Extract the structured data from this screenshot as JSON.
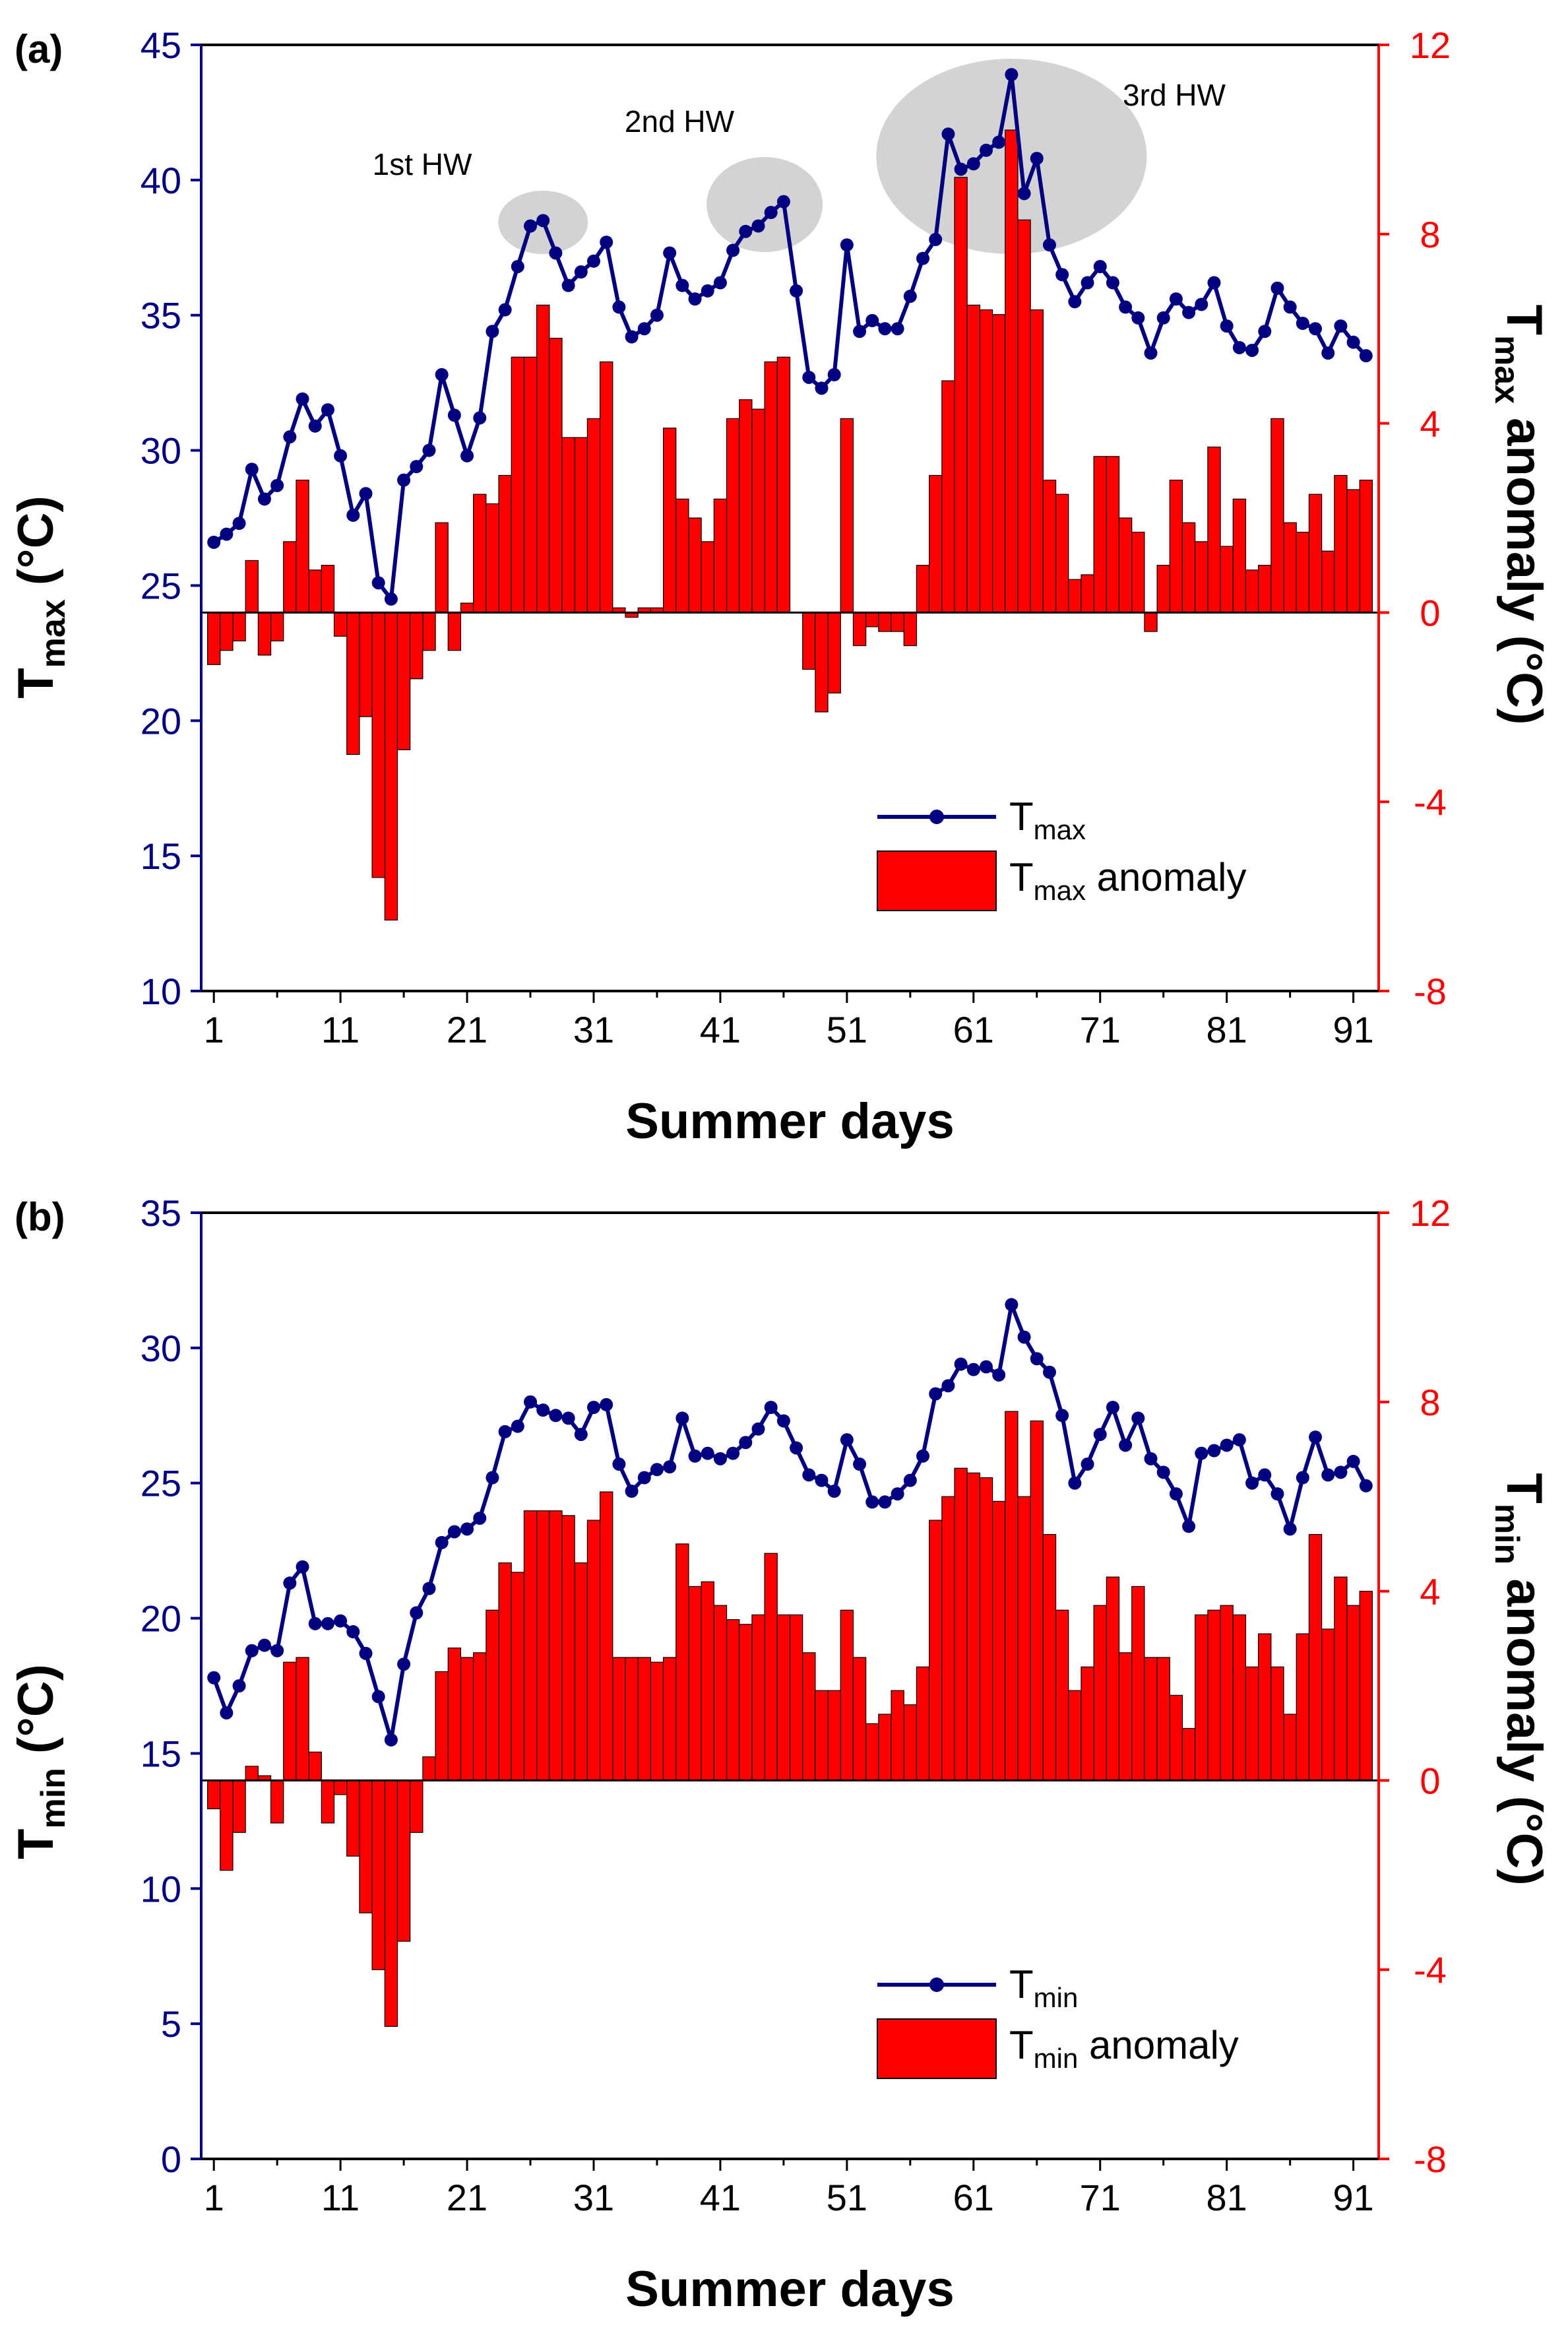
{
  "chart_data": [
    {
      "type": "bar+line",
      "panel_label": "(a)",
      "xlabel": "Summer days",
      "x_ticks": [
        1,
        11,
        21,
        31,
        41,
        51,
        61,
        71,
        81,
        91
      ],
      "xlim": [
        0,
        93
      ],
      "left_axis": {
        "label_main": "T",
        "label_sub": "max",
        "label_unit": " (°C)",
        "ylim": [
          10,
          45
        ],
        "ticks": [
          10,
          15,
          20,
          25,
          30,
          35,
          40,
          45
        ],
        "color": "#000080"
      },
      "right_axis": {
        "label_main": "T",
        "label_sub": "max",
        "label_rest": " anomaly (°C)",
        "ylim": [
          -8,
          12
        ],
        "ticks": [
          -8,
          -4,
          0,
          4,
          8,
          12
        ],
        "color": "#ff0000"
      },
      "line_series": {
        "name_main": "T",
        "name_sub": "max",
        "color": "#000080",
        "values": [
          26.6,
          26.9,
          27.3,
          29.3,
          28.2,
          28.7,
          30.5,
          31.9,
          30.9,
          31.5,
          29.8,
          27.6,
          28.4,
          25.1,
          24.5,
          28.9,
          29.4,
          30.0,
          32.8,
          31.3,
          29.8,
          31.2,
          34.4,
          35.2,
          36.8,
          38.3,
          38.5,
          37.3,
          36.1,
          36.6,
          37.0,
          37.7,
          35.3,
          34.2,
          34.5,
          35.0,
          37.3,
          36.1,
          35.6,
          35.9,
          36.2,
          37.4,
          38.1,
          38.3,
          38.8,
          39.2,
          35.9,
          32.7,
          32.3,
          32.8,
          37.6,
          34.4,
          34.8,
          34.5,
          34.5,
          35.7,
          37.1,
          37.8,
          41.7,
          40.4,
          40.6,
          41.1,
          41.4,
          43.9,
          39.5,
          40.8,
          37.6,
          36.5,
          35.5,
          36.2,
          36.8,
          36.2,
          35.3,
          34.9,
          33.6,
          34.9,
          35.6,
          35.1,
          35.4,
          36.2,
          34.6,
          33.8,
          33.7,
          34.4,
          36.0,
          35.3,
          34.7,
          34.5,
          33.6,
          34.6,
          34.0,
          33.5
        ]
      },
      "bar_series": {
        "name_main": "T",
        "name_sub": "max",
        "name_rest": " anomaly",
        "color": "#ff0000",
        "values": [
          -1.1,
          -0.8,
          -0.6,
          1.1,
          -0.9,
          -0.6,
          1.5,
          2.8,
          0.9,
          1.0,
          -0.5,
          -3.0,
          -2.2,
          -5.6,
          -6.5,
          -2.9,
          -1.4,
          -0.8,
          1.9,
          -0.8,
          0.2,
          2.5,
          2.3,
          2.9,
          5.4,
          5.4,
          6.5,
          5.8,
          3.7,
          3.7,
          4.1,
          5.3,
          0.1,
          -0.1,
          0.1,
          0.1,
          3.9,
          2.4,
          2.0,
          1.5,
          2.4,
          4.1,
          4.5,
          4.3,
          5.3,
          5.4,
          0.0,
          -1.2,
          -2.1,
          -1.7,
          4.1,
          -0.7,
          -0.3,
          -0.4,
          -0.4,
          -0.7,
          1.0,
          2.9,
          4.9,
          9.2,
          6.5,
          6.4,
          6.3,
          10.2,
          8.3,
          6.4,
          2.8,
          2.5,
          0.7,
          0.8,
          3.3,
          3.3,
          2.0,
          1.7,
          -0.4,
          1.0,
          2.8,
          1.9,
          1.5,
          3.5,
          1.4,
          2.4,
          0.9,
          1.0,
          4.1,
          1.9,
          1.7,
          2.5,
          1.3,
          2.9,
          2.6,
          2.8
        ]
      },
      "annotations": [
        {
          "label": "1st HW",
          "day_range": [
            25,
            29
          ]
        },
        {
          "label": "2nd HW",
          "day_range": [
            42,
            47
          ]
        },
        {
          "label": "3rd HW",
          "day_range": [
            58,
            70
          ]
        }
      ],
      "legend_position": "lower-right"
    },
    {
      "type": "bar+line",
      "panel_label": "(b)",
      "xlabel": "Summer days",
      "x_ticks": [
        1,
        11,
        21,
        31,
        41,
        51,
        61,
        71,
        81,
        91
      ],
      "xlim": [
        0,
        93
      ],
      "left_axis": {
        "label_main": "T",
        "label_sub": "min",
        "label_unit": " (°C)",
        "ylim": [
          0,
          35
        ],
        "ticks": [
          0,
          5,
          10,
          15,
          20,
          25,
          30,
          35
        ],
        "color": "#000080"
      },
      "right_axis": {
        "label_main": "T",
        "label_sub": "min",
        "label_rest": " anomaly (°C)",
        "ylim": [
          -8,
          12
        ],
        "ticks": [
          -8,
          -4,
          0,
          4,
          8,
          12
        ],
        "color": "#ff0000"
      },
      "line_series": {
        "name_main": "T",
        "name_sub": "min",
        "color": "#000080",
        "values": [
          17.8,
          16.5,
          17.5,
          18.8,
          19.0,
          18.8,
          21.3,
          21.9,
          19.8,
          19.8,
          19.9,
          19.5,
          18.7,
          17.1,
          15.5,
          18.3,
          20.2,
          21.1,
          22.8,
          23.2,
          23.3,
          23.7,
          25.2,
          26.9,
          27.1,
          28.0,
          27.7,
          27.5,
          27.4,
          26.8,
          27.8,
          27.9,
          25.7,
          24.7,
          25.2,
          25.5,
          25.6,
          27.4,
          26.0,
          26.1,
          25.9,
          26.1,
          26.5,
          27.0,
          27.8,
          27.3,
          26.3,
          25.3,
          25.1,
          24.7,
          26.6,
          25.7,
          24.3,
          24.3,
          24.6,
          25.1,
          26.0,
          28.3,
          28.6,
          29.4,
          29.2,
          29.3,
          29.0,
          31.6,
          30.4,
          29.6,
          29.1,
          27.5,
          25.0,
          25.7,
          26.8,
          27.8,
          26.4,
          27.4,
          25.9,
          25.4,
          24.6,
          23.4,
          26.1,
          26.2,
          26.4,
          26.6,
          25.0,
          25.3,
          24.6,
          23.3,
          25.2,
          26.7,
          25.3,
          25.4,
          25.8,
          24.9
        ]
      },
      "bar_series": {
        "name_main": "T",
        "name_sub": "min",
        "name_rest": " anomaly",
        "color": "#ff0000",
        "values": [
          -0.6,
          -1.9,
          -1.1,
          0.3,
          0.1,
          -0.9,
          2.5,
          2.6,
          0.6,
          -0.9,
          -0.3,
          -1.6,
          -2.8,
          -4.0,
          -5.2,
          -3.4,
          -1.1,
          0.5,
          2.3,
          2.8,
          2.6,
          2.7,
          3.6,
          4.6,
          4.4,
          5.7,
          5.7,
          5.7,
          5.6,
          4.6,
          5.5,
          6.1,
          2.6,
          2.6,
          2.6,
          2.5,
          2.6,
          5.0,
          4.1,
          4.2,
          3.7,
          3.4,
          3.3,
          3.5,
          4.8,
          3.5,
          3.5,
          2.7,
          1.9,
          1.9,
          3.6,
          2.6,
          1.2,
          1.4,
          1.9,
          1.6,
          2.4,
          5.5,
          6.0,
          6.6,
          6.5,
          6.4,
          5.9,
          7.8,
          6.0,
          7.6,
          5.2,
          3.6,
          1.9,
          2.4,
          3.7,
          4.3,
          2.7,
          4.1,
          2.6,
          2.6,
          1.8,
          1.1,
          3.5,
          3.6,
          3.7,
          3.5,
          2.4,
          3.1,
          2.4,
          1.4,
          3.1,
          5.2,
          3.2,
          4.3,
          3.7,
          4.0
        ]
      },
      "annotations": [],
      "legend_position": "lower-right"
    }
  ]
}
